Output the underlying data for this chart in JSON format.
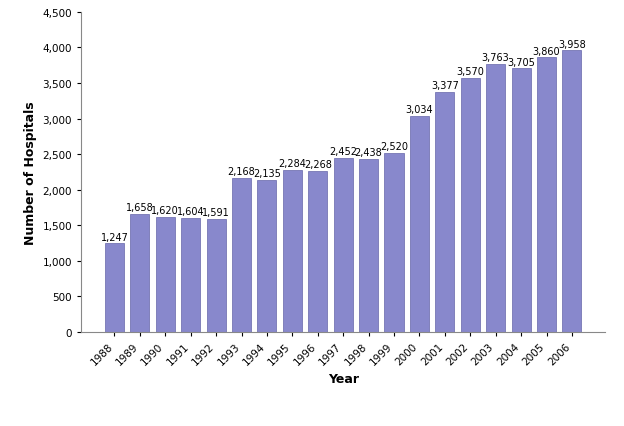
{
  "years": [
    "1988",
    "1989",
    "1990",
    "1991",
    "1992",
    "1993",
    "1994",
    "1995",
    "1996",
    "1997",
    "1998",
    "1999",
    "2000",
    "2001",
    "2002",
    "2003",
    "2004",
    "2005",
    "2006"
  ],
  "values": [
    1247,
    1658,
    1620,
    1604,
    1591,
    2168,
    2135,
    2284,
    2268,
    2452,
    2438,
    2520,
    3034,
    3377,
    3570,
    3763,
    3705,
    3860,
    3958
  ],
  "bar_color": "#8888cc",
  "bar_edge_color": "#6666aa",
  "xlabel": "Year",
  "ylabel": "Number of Hospitals",
  "ylim": [
    0,
    4500
  ],
  "yticks": [
    0,
    500,
    1000,
    1500,
    2000,
    2500,
    3000,
    3500,
    4000,
    4500
  ],
  "title": "",
  "label_fontsize": 7.0,
  "axis_label_fontsize": 9,
  "tick_fontsize": 7.5,
  "background_color": "#ffffff"
}
